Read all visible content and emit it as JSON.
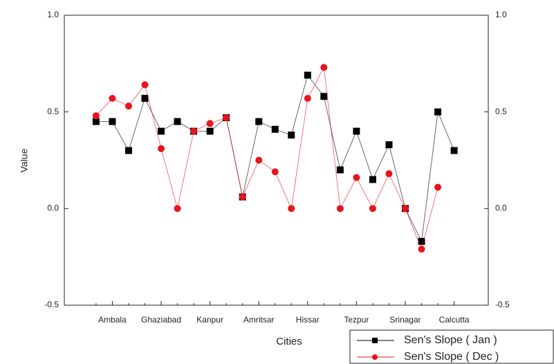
{
  "chart_data": {
    "type": "line",
    "x_label": "Cities",
    "y_label": "Value",
    "categories": [
      null,
      "Ambala",
      null,
      null,
      "Ghaziabad",
      null,
      null,
      "Kanpur",
      null,
      null,
      "Amritsar",
      null,
      null,
      "Hissar",
      null,
      null,
      "Tezpur",
      null,
      null,
      "Srinagar",
      null,
      null,
      "Calcutta"
    ],
    "series": [
      {
        "name": "Sen's Slope ( Jan )",
        "color": "#000000",
        "marker": "square",
        "values": [
          0.45,
          0.45,
          0.3,
          0.57,
          0.4,
          0.45,
          0.4,
          0.4,
          0.47,
          0.06,
          0.45,
          0.41,
          0.38,
          0.69,
          0.58,
          0.2,
          0.4,
          0.15,
          0.33,
          0.0,
          -0.17,
          0.5,
          0.3
        ]
      },
      {
        "name": "Sen's Slope ( Dec )",
        "color": "#e8141c",
        "marker": "circle",
        "values": [
          0.48,
          0.57,
          0.53,
          0.64,
          0.31,
          0.0,
          0.4,
          0.44,
          0.47,
          0.06,
          0.25,
          0.19,
          0.0,
          0.57,
          0.73,
          0.0,
          0.16,
          0.0,
          0.18,
          0.0,
          -0.21,
          0.11,
          null
        ]
      }
    ],
    "ylim": [
      -0.5,
      1.0
    ],
    "yticks": [
      -0.5,
      {
        "value": 0,
        "label": "0.0"
      },
      0.5,
      {
        "value": 1,
        "label": "1.0"
      }
    ],
    "y2lim": [
      -0.5,
      1.0
    ],
    "y2ticks": [
      -0.5,
      {
        "value": 0,
        "label": "0.0"
      },
      0.5,
      {
        "value": 1,
        "label": "1.0"
      }
    ],
    "grid": false,
    "legend": "bottom-right"
  }
}
